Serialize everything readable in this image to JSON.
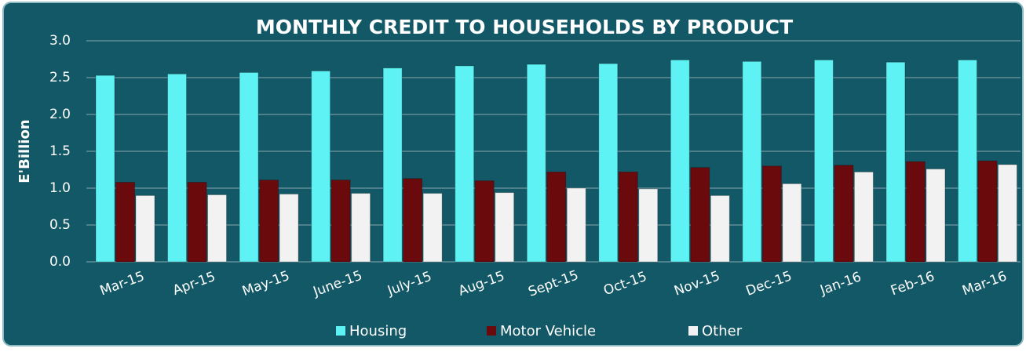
{
  "chart_data": {
    "type": "bar",
    "title": "MONTHLY CREDIT TO HOUSEHOLDS  BY PRODUCT",
    "y_label": "E'Billion",
    "categories": [
      "Mar-15",
      "Apr-15",
      "May-15",
      "June-15",
      "July-15",
      "Aug-15",
      "Sept-15",
      "Oct-15",
      "Nov-15",
      "Dec-15",
      "Jan-16",
      "Feb-16",
      "Mar-16"
    ],
    "series": [
      {
        "name": "Housing",
        "color": "#5ff2f4",
        "values": [
          2.53,
          2.55,
          2.57,
          2.59,
          2.63,
          2.66,
          2.68,
          2.69,
          2.74,
          2.72,
          2.74,
          2.71,
          2.74
        ]
      },
      {
        "name": "Motor Vehicle",
        "color": "#6b0a0c",
        "values": [
          1.08,
          1.08,
          1.11,
          1.11,
          1.13,
          1.1,
          1.22,
          1.22,
          1.28,
          1.3,
          1.31,
          1.36,
          1.37
        ]
      },
      {
        "name": "Other",
        "color": "#f2f2f2",
        "values": [
          0.9,
          0.91,
          0.92,
          0.93,
          0.93,
          0.94,
          1.0,
          0.99,
          0.9,
          1.06,
          1.22,
          1.26,
          1.32
        ]
      }
    ],
    "ylim": [
      0,
      3
    ],
    "yticks": [
      {
        "value": 0,
        "label": "0.0"
      },
      {
        "value": 0.5,
        "label": "0.5"
      },
      {
        "value": 1,
        "label": "1.0"
      },
      {
        "value": 1.5,
        "label": "1.5"
      },
      {
        "value": 2,
        "label": "2.0"
      },
      {
        "value": 2.5,
        "label": "2.5"
      },
      {
        "value": 3,
        "label": "3.0"
      }
    ],
    "grid": true,
    "legend": "bottom"
  }
}
